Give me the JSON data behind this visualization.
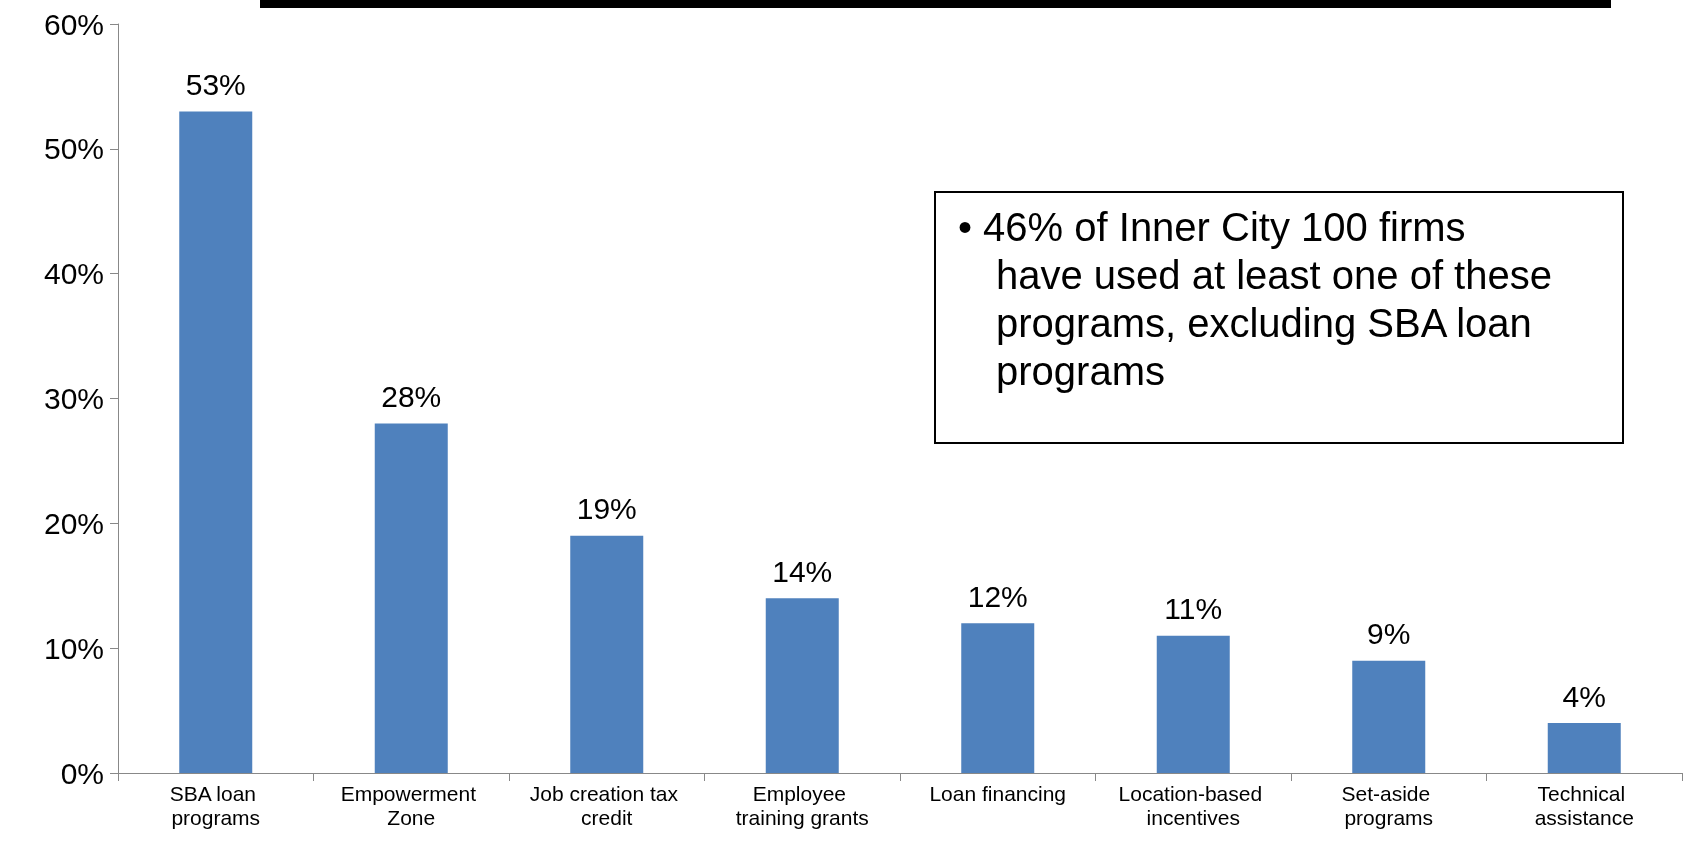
{
  "chart_data": {
    "type": "bar",
    "categories": [
      "SBA loan programs",
      "Empowerment Zone",
      "Job creation tax credit",
      "Employee training grants",
      "Loan financing",
      "Location-based incentives",
      "Set-aside programs",
      "Technical assistance"
    ],
    "values": [
      53,
      28,
      19,
      14,
      12,
      11,
      9,
      4
    ],
    "value_labels": [
      "53%",
      "28%",
      "19%",
      "14%",
      "12%",
      "11%",
      "9%",
      "4%"
    ],
    "color": "#4f81bd",
    "ylim": [
      0,
      60
    ],
    "yticks": [
      {
        "value": 0,
        "label": "0%"
      },
      {
        "value": 10,
        "label": "10%"
      },
      {
        "value": 20,
        "label": "20%"
      },
      {
        "value": 30,
        "label": "30%"
      },
      {
        "value": 40,
        "label": "40%"
      },
      {
        "value": 50,
        "label": "50%"
      },
      {
        "value": 60,
        "label": "60%"
      }
    ],
    "grid": false,
    "annotations": [
      "• 46% of Inner City 100 firms have used at least one of these programs, excluding SBA loan programs"
    ]
  }
}
